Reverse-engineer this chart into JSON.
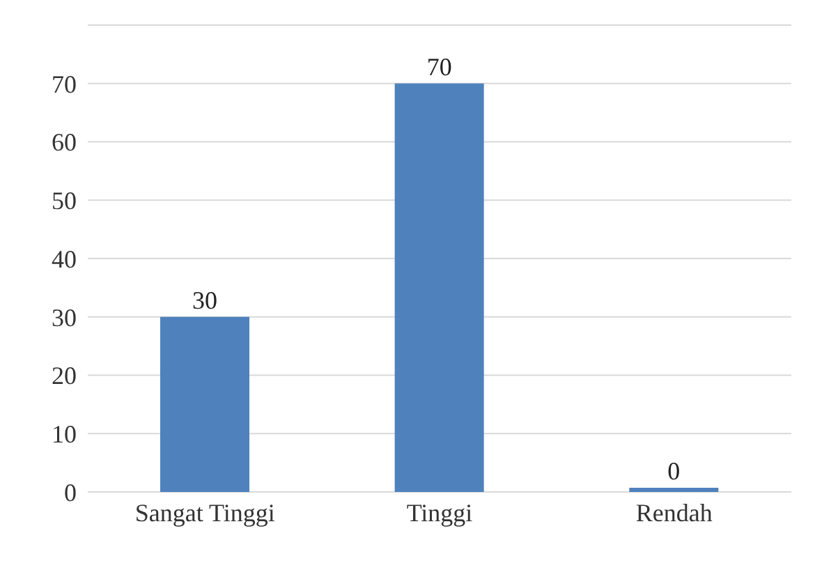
{
  "chart_data": {
    "type": "bar",
    "categories": [
      "Sangat Tinggi",
      "Tinggi",
      "Rendah"
    ],
    "values": [
      30,
      70,
      0
    ],
    "color": "#4f81bd",
    "ylim": [
      0,
      80
    ],
    "yticks": [
      0,
      10,
      20,
      30,
      40,
      50,
      60,
      70,
      {
        "value": 80,
        "label": null
      }
    ],
    "grid": "y",
    "data_labels": true
  }
}
